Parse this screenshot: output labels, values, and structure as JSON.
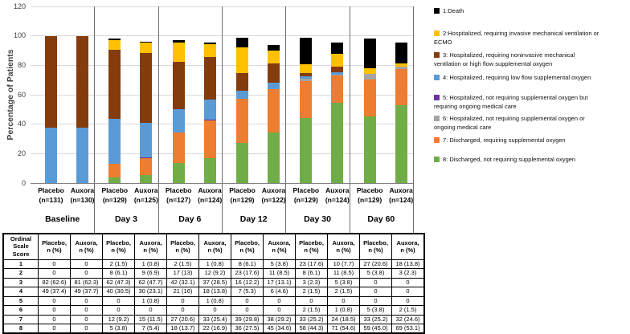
{
  "chart_data": {
    "type": "stacked-bar",
    "title": "",
    "ylabel": "Percentage of Patients",
    "xlabel": "",
    "ylim": [
      0,
      120
    ],
    "yticks": [
      0,
      20,
      40,
      60,
      80,
      100,
      120
    ],
    "grid": true,
    "legend_position": "right",
    "groups": [
      {
        "label": "Baseline",
        "bars": [
          {
            "arm": "Placebo",
            "n": "(n=131)"
          },
          {
            "arm": "Auxora",
            "n": "(n=130)"
          }
        ]
      },
      {
        "label": "Day 3",
        "bars": [
          {
            "arm": "Placebo",
            "n": "(n=129)"
          },
          {
            "arm": "Auxora",
            "n": "(n=125)"
          }
        ]
      },
      {
        "label": "Day 6",
        "bars": [
          {
            "arm": "Placebo",
            "n": "(n=127)"
          },
          {
            "arm": "Auxora",
            "n": "(n=124)"
          }
        ]
      },
      {
        "label": "Day 12",
        "bars": [
          {
            "arm": "Placebo",
            "n": "(n=129)"
          },
          {
            "arm": "Auxora",
            "n": "(n=122)"
          }
        ]
      },
      {
        "label": "Day 30",
        "bars": [
          {
            "arm": "Placebo",
            "n": "(n=129)"
          },
          {
            "arm": "Auxora",
            "n": "(n=124)"
          }
        ]
      },
      {
        "label": "Day 60",
        "bars": [
          {
            "arm": "Placebo",
            "n": "(n=129)"
          },
          {
            "arm": "Auxora",
            "n": "(n=124)"
          }
        ]
      }
    ],
    "bar_order_note": "values arrays are in order Baseline-Placebo, Baseline-Auxora, Day3-P, Day3-A, Day6-P, Day6-A, Day12-P, Day12-A, Day30-P, Day30-A, Day60-P, Day60-A (percent of patients)",
    "stack_order_bottom_to_top": [
      8,
      7,
      6,
      5,
      4,
      3,
      2,
      1
    ],
    "series": [
      {
        "score": 1,
        "label": "1:Death",
        "color": "#000000",
        "values": [
          0,
          0,
          1.5,
          0.8,
          1.5,
          0.8,
          6.1,
          3.8,
          17.6,
          7.7,
          20.6,
          13.8
        ]
      },
      {
        "score": 2,
        "label": "2:Hospitalized, requiring invasive mechanical ventilation or ECMO",
        "color": "#FFC000",
        "values": [
          0,
          0,
          6.1,
          6.9,
          13,
          9.2,
          17.6,
          8.5,
          6.1,
          8.5,
          3.8,
          2.3
        ]
      },
      {
        "score": 3,
        "label": "3: Hospitalized, requiring noninvasive mechanical ventilation or high flow supplemental oxygen",
        "color": "#843C0C",
        "values": [
          62.6,
          62.3,
          47.3,
          47.7,
          32.1,
          28.5,
          12.2,
          13.1,
          2.3,
          3.8,
          0,
          0
        ]
      },
      {
        "score": 4,
        "label": "4: Hospitalized, requiring low flow supplemental oxygen",
        "color": "#5B9BD5",
        "values": [
          37.4,
          37.7,
          30.5,
          23.1,
          16,
          13.8,
          5.3,
          4.6,
          1.5,
          1.5,
          0,
          0
        ]
      },
      {
        "score": 5,
        "label": "5: Hospitalized, not requiring supplemental oxygen but requiring ongoing medical care",
        "color": "#7030A0",
        "values": [
          0,
          0,
          0,
          0.8,
          0,
          0.8,
          0,
          0,
          0,
          0,
          0,
          0
        ]
      },
      {
        "score": 6,
        "label": "6: Hospitalized, not requiring supplemental oxygen or ongoing medical care",
        "color": "#A5A5A5",
        "values": [
          0,
          0,
          0,
          0,
          0,
          0,
          0,
          0,
          1.5,
          0.8,
          3.8,
          1.5
        ]
      },
      {
        "score": 7,
        "label": "7: Discharged, requiring supplemental oxygen",
        "color": "#ED7D31",
        "values": [
          0,
          0,
          9.2,
          11.5,
          20.6,
          25.4,
          29.8,
          29.2,
          25.2,
          18.5,
          25.2,
          24.6
        ]
      },
      {
        "score": 8,
        "label": "8: Discharged, not requiring supplemental oxygen",
        "color": "#70AD47",
        "values": [
          0,
          0,
          3.8,
          5.4,
          13.7,
          16.9,
          27.5,
          34.6,
          44.3,
          54.6,
          45,
          53.1
        ]
      }
    ]
  },
  "legend": {
    "items": [
      {
        "score": 1,
        "color": "#000000",
        "lines": [
          "1:Death"
        ]
      },
      {
        "score": 2,
        "color": "#FFC000",
        "lines": [
          "2:Hospitalized, requiring invasive mechanical ventilation or",
          "ECMO"
        ]
      },
      {
        "score": 3,
        "color": "#843C0C",
        "lines": [
          "3: Hospitalized, requiring noninvasive mechanical",
          "ventilation or high flow supplemental oxygen"
        ]
      },
      {
        "score": 4,
        "color": "#5B9BD5",
        "lines": [
          "4: Hospitalized, requiring low flow supplemental oxygen"
        ]
      },
      {
        "score": 5,
        "color": "#7030A0",
        "lines": [
          "5: Hospitalized, not requiring supplemental oxygen but",
          "requiring ongoing medical care"
        ]
      },
      {
        "score": 6,
        "color": "#A5A5A5",
        "lines": [
          "6: Hospitalized, not requiring supplemental oxygen or",
          "ongoing medical care"
        ]
      },
      {
        "score": 7,
        "color": "#ED7D31",
        "lines": [
          "7: Discharged, requiring supplemental oxygen"
        ]
      },
      {
        "score": 8,
        "color": "#70AD47",
        "lines": [
          "8: Discharged, not requiring supplemental oxygen"
        ]
      }
    ]
  },
  "table": {
    "corner_lines": [
      "Ordinal",
      "Scale",
      "Score"
    ],
    "col_headers": [
      {
        "line1": "Placebo,",
        "line2": "n (%)"
      },
      {
        "line1": "Auxora,",
        "line2": "n (%)"
      },
      {
        "line1": "Placebo,",
        "line2": "n (%)"
      },
      {
        "line1": "Auxora,",
        "line2": "n (%)"
      },
      {
        "line1": "Placebo,",
        "line2": "n (%)"
      },
      {
        "line1": "Auxora,",
        "line2": "n (%)"
      },
      {
        "line1": "Placebo,",
        "line2": "n (%)"
      },
      {
        "line1": "Auxora,",
        "line2": "n (%)"
      },
      {
        "line1": "Placebo,",
        "line2": "n (%)"
      },
      {
        "line1": "Auxora,",
        "line2": "n (%)"
      },
      {
        "line1": "Placebo,",
        "line2": "n (%)"
      },
      {
        "line1": "Auxora,",
        "line2": "n (%)"
      }
    ],
    "rows": [
      {
        "score": "1",
        "cells": [
          "0",
          "0",
          "2 (1.5)",
          "1 (0.8)",
          "2 (1.5)",
          "1 (0.8)",
          "8 (6.1)",
          "5 (3.8)",
          "23 (17.6)",
          "10 (7.7)",
          "27 (20.6)",
          "18 (13.8)"
        ]
      },
      {
        "score": "2",
        "cells": [
          "0",
          "0",
          "8 (6.1)",
          "9 (6.9)",
          "17 (13)",
          "12 (9.2)",
          "23 (17.6)",
          "11 (8.5)",
          "8 (6.1)",
          "11 (8.5)",
          "5 (3.8)",
          "3 (2.3)"
        ]
      },
      {
        "score": "3",
        "cells": [
          "82 (62.6)",
          "81 (62.3)",
          "62 (47.3)",
          "62 (47.7)",
          "42 (32.1)",
          "37 (28.5)",
          "16 (12.2)",
          "17 (13.1)",
          "3 (2.3)",
          "5 (3.8)",
          "0",
          "0"
        ]
      },
      {
        "score": "4",
        "cells": [
          "49 (37.4)",
          "49 (37.7)",
          "40 (30.5)",
          "30 (23.1)",
          "21 (16)",
          "18 (13.8)",
          "7 (5.3)",
          "6 (4.6)",
          "2 (1.5)",
          "2 (1.5)",
          "0",
          "0"
        ]
      },
      {
        "score": "5",
        "cells": [
          "0",
          "0",
          "0",
          "1 (0.8)",
          "0",
          "1 (0.8)",
          "0",
          "0",
          "0",
          "0",
          "0",
          "0"
        ]
      },
      {
        "score": "6",
        "cells": [
          "0",
          "0",
          "0",
          "0",
          "0",
          "0",
          "0",
          "0",
          "2 (1.5)",
          "1 (0.8)",
          "5 (3.8)",
          "2 (1.5)"
        ]
      },
      {
        "score": "7",
        "cells": [
          "0",
          "0",
          "12 (9.2)",
          "15 (11.5)",
          "27 (20.6)",
          "33 (25.4)",
          "39 (29.8)",
          "38 (29.2)",
          "33 (25.2)",
          "24 (18.5)",
          "33 (25.2)",
          "32 (24.6)"
        ]
      },
      {
        "score": "8",
        "cells": [
          "0",
          "0",
          "5 (3.8)",
          "7 (5.4)",
          "18 (13.7)",
          "22 (16.9)",
          "36 (27.5)",
          "45 (34.6)",
          "58 (44.3)",
          "71 (54.6)",
          "59 (45.0)",
          "69 (53.1)"
        ]
      }
    ]
  },
  "colors": {
    "gridline": "#D9D9D9",
    "axis": "#808080",
    "group_separator": "#6E6E6E",
    "tick_text": "#3F3F3F"
  }
}
